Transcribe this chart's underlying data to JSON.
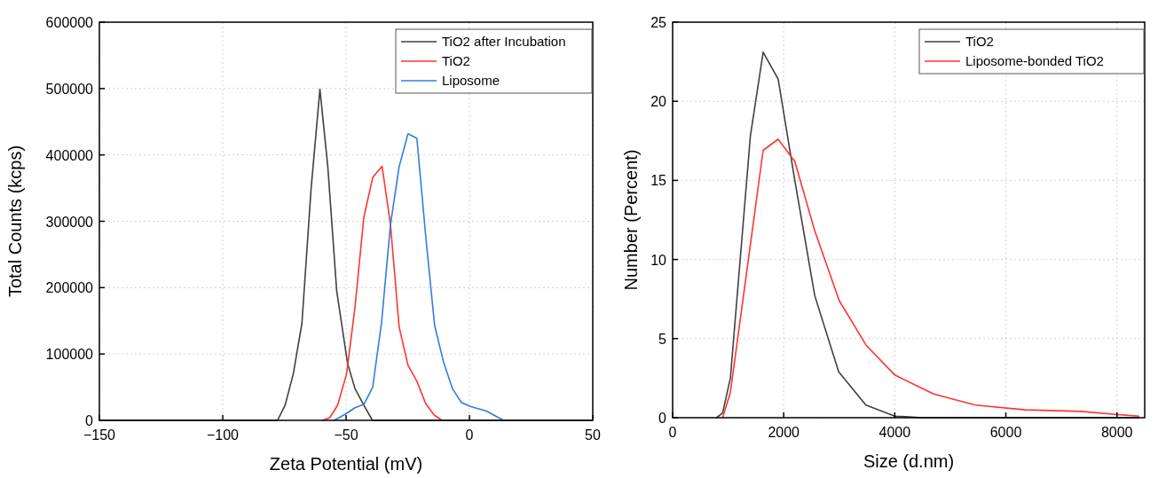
{
  "chart_data": [
    {
      "type": "line",
      "xlabel": "Zeta Potential (mV)",
      "ylabel": "Total Counts (kcps)",
      "xlim": [
        -150,
        50
      ],
      "xticks": [
        {
          "value": -150,
          "label": "−150"
        },
        {
          "value": -100,
          "label": "−100"
        },
        {
          "value": -50,
          "label": "−50"
        },
        0,
        50
      ],
      "ylim": [
        0,
        600000
      ],
      "yticks": [
        0,
        100000,
        200000,
        300000,
        400000,
        500000,
        600000
      ],
      "grid": true,
      "legend": "top right",
      "line_style": "solid",
      "series": [
        {
          "name": "TiO2 after Incubation",
          "color": "#404040",
          "x": [
            -150,
            -77.8,
            -74.7,
            -71.4,
            -67.9,
            -64.2,
            -60.6,
            -57.4,
            -53.8,
            -49.4,
            -46.4,
            -42.8,
            -39.3,
            50
          ],
          "values": [
            0,
            0,
            23000,
            70000,
            146000,
            348000,
            499000,
            382000,
            195000,
            86000,
            48000,
            23000,
            0,
            0
          ]
        },
        {
          "name": "TiO2",
          "color": "#ff3333",
          "x": [
            -59.6,
            -56.6,
            -53.4,
            -49.8,
            -46.4,
            -42.8,
            -39.2,
            -35.4,
            -32,
            -28.5,
            -24.9,
            -21.3,
            -17.7,
            -14.3,
            -11.1
          ],
          "values": [
            0,
            4000,
            23000,
            70000,
            170000,
            306000,
            366000,
            383000,
            295000,
            141000,
            83000,
            59000,
            25000,
            8000,
            0
          ]
        },
        {
          "name": "Liposome",
          "color": "#2f7de1",
          "x": [
            -54.8,
            -50,
            -46.4,
            -42.8,
            -39.2,
            -35.6,
            -32,
            -28.5,
            -24.9,
            -21.3,
            -17.7,
            -14.1,
            -10.5,
            -6.9,
            -3.3,
            0.3,
            6.9,
            13.8
          ],
          "values": [
            0,
            10000,
            19000,
            24000,
            50000,
            148000,
            295000,
            382000,
            432000,
            425000,
            277000,
            143000,
            88000,
            48000,
            27000,
            21000,
            14000,
            0
          ]
        }
      ]
    },
    {
      "type": "line",
      "xlabel": "Size (d.nm)",
      "ylabel": "Number (Percent)",
      "xlim": [
        0,
        8500
      ],
      "xticks": [
        0,
        2000,
        4000,
        6000,
        8000
      ],
      "ylim": [
        0,
        25
      ],
      "yticks": [
        0,
        5,
        10,
        15,
        20,
        25
      ],
      "grid": true,
      "legend": "top right",
      "line_style": "solid",
      "series": [
        {
          "name": "TiO2",
          "color": "#404040",
          "x": [
            790,
            900,
            1040,
            1400,
            1630,
            1900,
            2200,
            2560,
            2990,
            3480,
            4000,
            4500,
            8400
          ],
          "values": [
            0,
            0.3,
            2.5,
            17.8,
            23.1,
            21.4,
            15,
            7.7,
            2.9,
            0.8,
            0.1,
            0,
            0
          ]
        },
        {
          "name": "Liposome-bonded TiO2",
          "color": "#ff3333",
          "x": [
            900,
            1040,
            1630,
            1900,
            2200,
            2560,
            3000,
            3480,
            4000,
            4700,
            5450,
            6350,
            7350,
            8010,
            8400
          ],
          "values": [
            0,
            1.6,
            16.9,
            17.6,
            16.2,
            11.8,
            7.4,
            4.6,
            2.7,
            1.5,
            0.8,
            0.5,
            0.4,
            0.2,
            0.1
          ]
        }
      ]
    }
  ]
}
